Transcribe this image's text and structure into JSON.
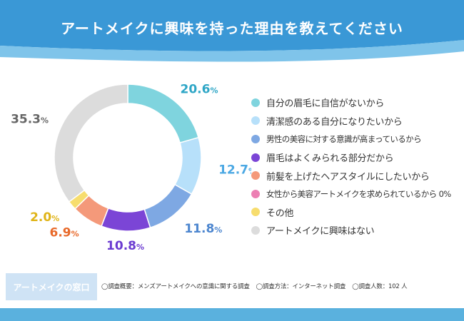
{
  "title": "アートメイクに興味を持った理由を教えてください",
  "colors": {
    "header_dark": "#3a98d6",
    "header_light": "#7fc4ea",
    "footer": "#5ab1de",
    "brand_bg": "#cfe3f5"
  },
  "chart_data": {
    "type": "pie",
    "variant": "donut",
    "title": "アートメイクに興味を持った理由を教えてください",
    "slices": [
      {
        "label": "自分の眉毛に自信がないから",
        "value": 20.6,
        "display": "20.6",
        "color": "#7fd4de"
      },
      {
        "label": "清潔感のある自分になりたいから",
        "value": 12.7,
        "display": "12.7",
        "color": "#b7e0fa"
      },
      {
        "label": "男性の美容に対する意識が高まっているから",
        "value": 11.8,
        "display": "11.8",
        "color": "#7ea8e3"
      },
      {
        "label": "眉毛はよくみられる部分だから",
        "value": 10.8,
        "display": "10.8",
        "color": "#7b45d6"
      },
      {
        "label": "前髪を上げたヘアスタイルにしたいから",
        "value": 6.9,
        "display": "6.9",
        "color": "#f4997a"
      },
      {
        "label": "女性から美容アートメイクを求められているから 0%",
        "value": 0,
        "display": "",
        "color": "#ec7fb3"
      },
      {
        "label": "その他",
        "value": 2.0,
        "display": "2.0",
        "color": "#f7dd6e"
      },
      {
        "label": "アートメイクに興味はない",
        "value": 35.3,
        "display": "35.3",
        "color": "#dcdcdc"
      }
    ],
    "label_colors": [
      "#2ea6c6",
      "#4ba8e3",
      "#4d86cf",
      "#6b3bd1",
      "#e8692a",
      "#ec7fb3",
      "#e0b418",
      "#666666"
    ],
    "unit": "%",
    "legend_position": "right"
  },
  "footer": {
    "brand": "アートメイクの窓口",
    "notes": [
      "◯調査概要：メンズアートメイクへの意識に関する調査",
      "◯調査方法：インターネット調査",
      "◯調査人数：102 人"
    ]
  }
}
